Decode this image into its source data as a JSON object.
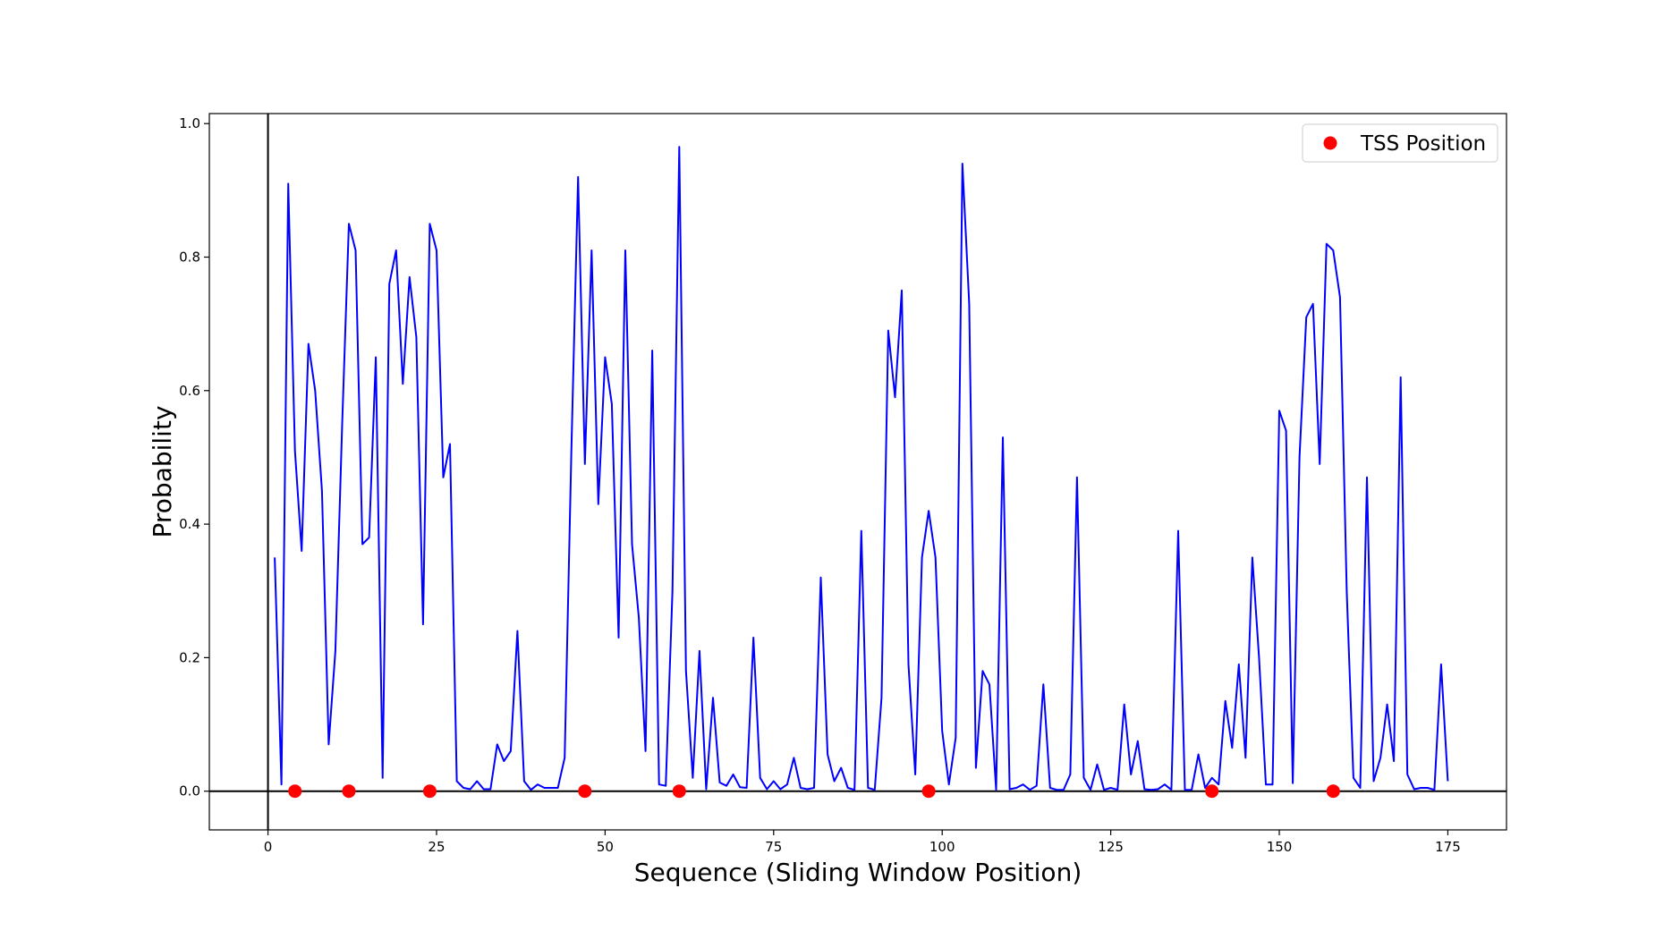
{
  "chart_data": {
    "type": "line",
    "title": "",
    "xlabel": "Sequence (Sliding Window Position)",
    "ylabel": "Probability",
    "xlim": [
      -8.7,
      183.7
    ],
    "ylim": [
      -0.058,
      1.015
    ],
    "xticks": [
      0,
      25,
      50,
      75,
      100,
      125,
      150,
      175
    ],
    "yticks": [
      0.0,
      0.2,
      0.4,
      0.6,
      0.8,
      1.0
    ],
    "ytick_labels": [
      "0.0",
      "0.2",
      "0.4",
      "0.6",
      "0.8",
      "1.0"
    ],
    "grid": false,
    "legend_position": "top-right",
    "reference_lines": {
      "horizontal_y": 0,
      "vertical_x": 0
    },
    "series": [
      {
        "type": "line",
        "color": "#0000ff",
        "x": [
          1,
          2,
          3,
          4,
          5,
          6,
          7,
          8,
          9,
          10,
          11,
          12,
          13,
          14,
          15,
          16,
          17,
          18,
          19,
          20,
          21,
          22,
          23,
          24,
          25,
          26,
          27,
          28,
          29,
          30,
          31,
          32,
          33,
          34,
          35,
          36,
          37,
          38,
          39,
          40,
          41,
          42,
          43,
          44,
          45,
          46,
          47,
          48,
          49,
          50,
          51,
          52,
          53,
          54,
          55,
          56,
          57,
          58,
          59,
          60,
          61,
          62,
          63,
          64,
          65,
          66,
          67,
          68,
          69,
          70,
          71,
          72,
          73,
          74,
          75,
          76,
          77,
          78,
          79,
          80,
          81,
          82,
          83,
          84,
          85,
          86,
          87,
          88,
          89,
          90,
          91,
          92,
          93,
          94,
          95,
          96,
          97,
          98,
          99,
          100,
          101,
          102,
          103,
          104,
          105,
          106,
          107,
          108,
          109,
          110,
          111,
          112,
          113,
          114,
          115,
          116,
          117,
          118,
          119,
          120,
          121,
          122,
          123,
          124,
          125,
          126,
          127,
          128,
          129,
          130,
          131,
          132,
          133,
          134,
          135,
          136,
          137,
          138,
          139,
          140,
          141,
          142,
          143,
          144,
          145,
          146,
          147,
          148,
          149,
          150,
          151,
          152,
          153,
          154,
          155,
          156,
          157,
          158,
          159,
          160,
          161,
          162,
          163,
          164,
          165,
          166,
          167,
          168,
          169,
          170,
          171,
          172,
          173,
          174,
          175
        ],
        "y": [
          0.35,
          0.01,
          0.91,
          0.51,
          0.36,
          0.67,
          0.6,
          0.45,
          0.07,
          0.21,
          0.55,
          0.85,
          0.81,
          0.37,
          0.38,
          0.65,
          0.02,
          0.76,
          0.81,
          0.61,
          0.77,
          0.68,
          0.25,
          0.85,
          0.81,
          0.47,
          0.52,
          0.015,
          0.005,
          0.003,
          0.015,
          0.003,
          0.003,
          0.07,
          0.045,
          0.06,
          0.24,
          0.015,
          0.002,
          0.01,
          0.005,
          0.005,
          0.005,
          0.05,
          0.51,
          0.92,
          0.49,
          0.81,
          0.43,
          0.65,
          0.58,
          0.23,
          0.81,
          0.37,
          0.26,
          0.06,
          0.66,
          0.01,
          0.008,
          0.3,
          0.965,
          0.18,
          0.02,
          0.21,
          0.003,
          0.14,
          0.013,
          0.008,
          0.025,
          0.006,
          0.005,
          0.23,
          0.02,
          0.003,
          0.015,
          0.003,
          0.01,
          0.05,
          0.005,
          0.003,
          0.005,
          0.32,
          0.055,
          0.015,
          0.035,
          0.005,
          0.002,
          0.39,
          0.005,
          0.002,
          0.14,
          0.69,
          0.59,
          0.75,
          0.19,
          0.025,
          0.35,
          0.42,
          0.35,
          0.09,
          0.01,
          0.08,
          0.94,
          0.73,
          0.035,
          0.18,
          0.16,
          0.002,
          0.53,
          0.003,
          0.005,
          0.01,
          0.002,
          0.008,
          0.16,
          0.005,
          0.002,
          0.002,
          0.025,
          0.47,
          0.02,
          0.002,
          0.04,
          0.002,
          0.005,
          0.002,
          0.13,
          0.025,
          0.075,
          0.003,
          0.002,
          0.003,
          0.01,
          0.002,
          0.39,
          0.002,
          0.002,
          0.055,
          0.005,
          0.02,
          0.01,
          0.135,
          0.065,
          0.19,
          0.05,
          0.35,
          0.2,
          0.01,
          0.01,
          0.57,
          0.54,
          0.012,
          0.5,
          0.71,
          0.73,
          0.49,
          0.82,
          0.81,
          0.74,
          0.3,
          0.02,
          0.005,
          0.47,
          0.015,
          0.05,
          0.13,
          0.045,
          0.62,
          0.025,
          0.003,
          0.005,
          0.005,
          0.002,
          0.19,
          0.015
        ]
      },
      {
        "type": "scatter",
        "name": "TSS Position",
        "color": "#ff0000",
        "x": [
          4,
          12,
          24,
          47,
          61,
          98,
          140,
          158
        ],
        "y": [
          0,
          0,
          0,
          0,
          0,
          0,
          0,
          0
        ]
      }
    ]
  }
}
